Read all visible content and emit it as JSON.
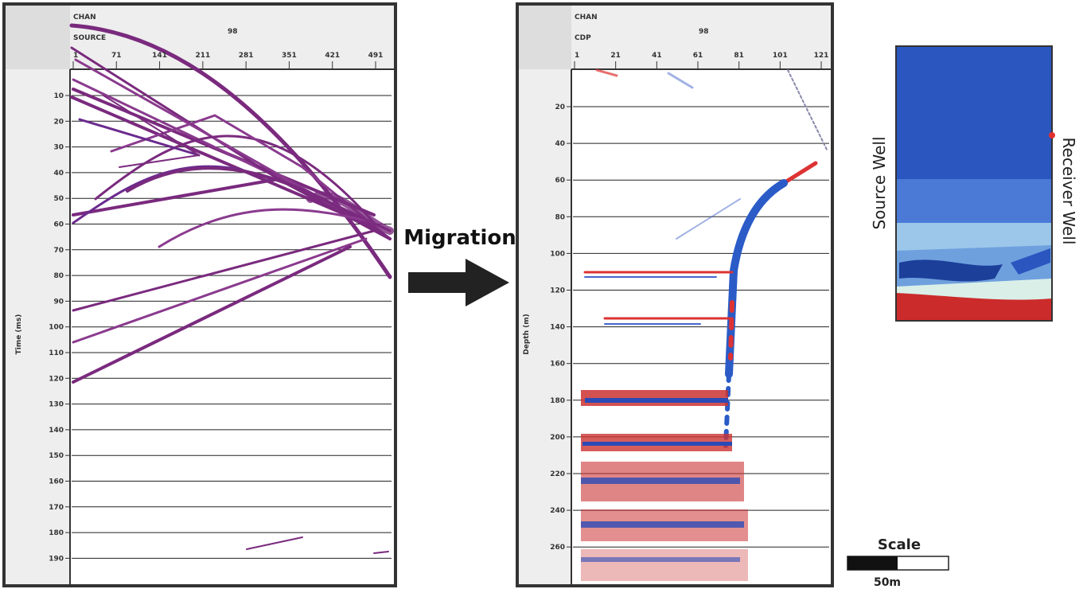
{
  "left_panel": {
    "header": {
      "chan": "CHAN",
      "source": "SOURCE",
      "value": "98"
    },
    "x_ticks": [
      "1",
      "71",
      "141",
      "211",
      "281",
      "351",
      "421",
      "491"
    ],
    "y_ticks": [
      "10",
      "20",
      "30",
      "40",
      "50",
      "60",
      "70",
      "80",
      "90",
      "100",
      "110",
      "120",
      "130",
      "140",
      "150",
      "160",
      "170",
      "180",
      "190"
    ],
    "y_label": "Time (ms)"
  },
  "arrow_label": "Migration",
  "middle_panel": {
    "header": {
      "chan": "CHAN",
      "cdp": "CDP",
      "value": "98"
    },
    "x_ticks": [
      "1",
      "21",
      "41",
      "61",
      "81",
      "101",
      "121"
    ],
    "y_ticks": [
      "20",
      "40",
      "60",
      "80",
      "100",
      "120",
      "140",
      "160",
      "180",
      "200",
      "220",
      "240",
      "260"
    ],
    "y_label": "Depth (m)"
  },
  "model": {
    "source_well": "Source Well",
    "receiver_well": "Receiver Well"
  },
  "scale": {
    "title": "Scale",
    "length": "50m"
  }
}
